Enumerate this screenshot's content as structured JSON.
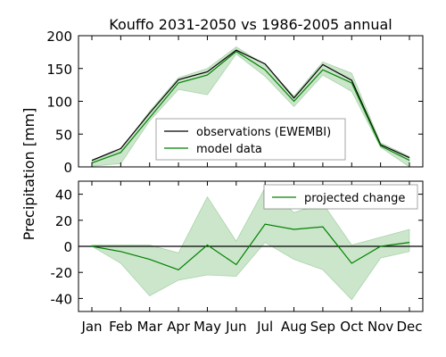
{
  "chart_data": {
    "type": "line",
    "title": "Kouffo 2031-2050 vs 1986-2005 annual",
    "ylabel": "Precipitation [mm]",
    "categories": [
      "Jan",
      "Feb",
      "Mar",
      "Apr",
      "May",
      "Jun",
      "Jul",
      "Aug",
      "Sep",
      "Oct",
      "Nov",
      "Dec"
    ],
    "panels": [
      {
        "name": "absolute",
        "ylim": [
          0,
          200
        ],
        "yticks": [
          0,
          50,
          100,
          150,
          200
        ],
        "legend_position": "center-bottom",
        "series": [
          {
            "name": "observations (EWEMBI)",
            "color": "#000000",
            "values": [
              10,
              28,
              82,
              133,
              145,
              178,
              157,
              105,
              156,
              132,
              34,
              14
            ]
          },
          {
            "name": "model data",
            "color": "#008000",
            "values": [
              6,
              22,
              75,
              128,
              140,
              176,
              148,
              100,
              148,
              128,
              32,
              10
            ]
          }
        ],
        "band": {
          "color": "#008000",
          "lower": [
            1,
            5,
            70,
            118,
            110,
            172,
            138,
            92,
            140,
            115,
            30,
            0
          ],
          "upper": [
            9,
            26,
            85,
            136,
            150,
            183,
            156,
            108,
            160,
            143,
            37,
            16
          ]
        }
      },
      {
        "name": "change",
        "ylim": [
          -50,
          50
        ],
        "yticks": [
          -40,
          -20,
          0,
          20,
          40
        ],
        "legend_position": "top-right",
        "series": [
          {
            "name": "projected change",
            "color": "#008000",
            "values": [
              0,
              -4,
              -10,
              -18,
              1,
              -14,
              17,
              13,
              15,
              -13,
              0,
              3
            ]
          }
        ],
        "band": {
          "color": "#008000",
          "lower": [
            0,
            -13,
            -38,
            -26,
            -22,
            -23,
            3,
            -10,
            -18,
            -41,
            -9,
            -4
          ],
          "upper": [
            1,
            1,
            1,
            -5,
            38,
            4,
            45,
            26,
            33,
            1,
            7,
            13
          ]
        },
        "zero_line": {
          "color": "#000000"
        }
      }
    ]
  }
}
